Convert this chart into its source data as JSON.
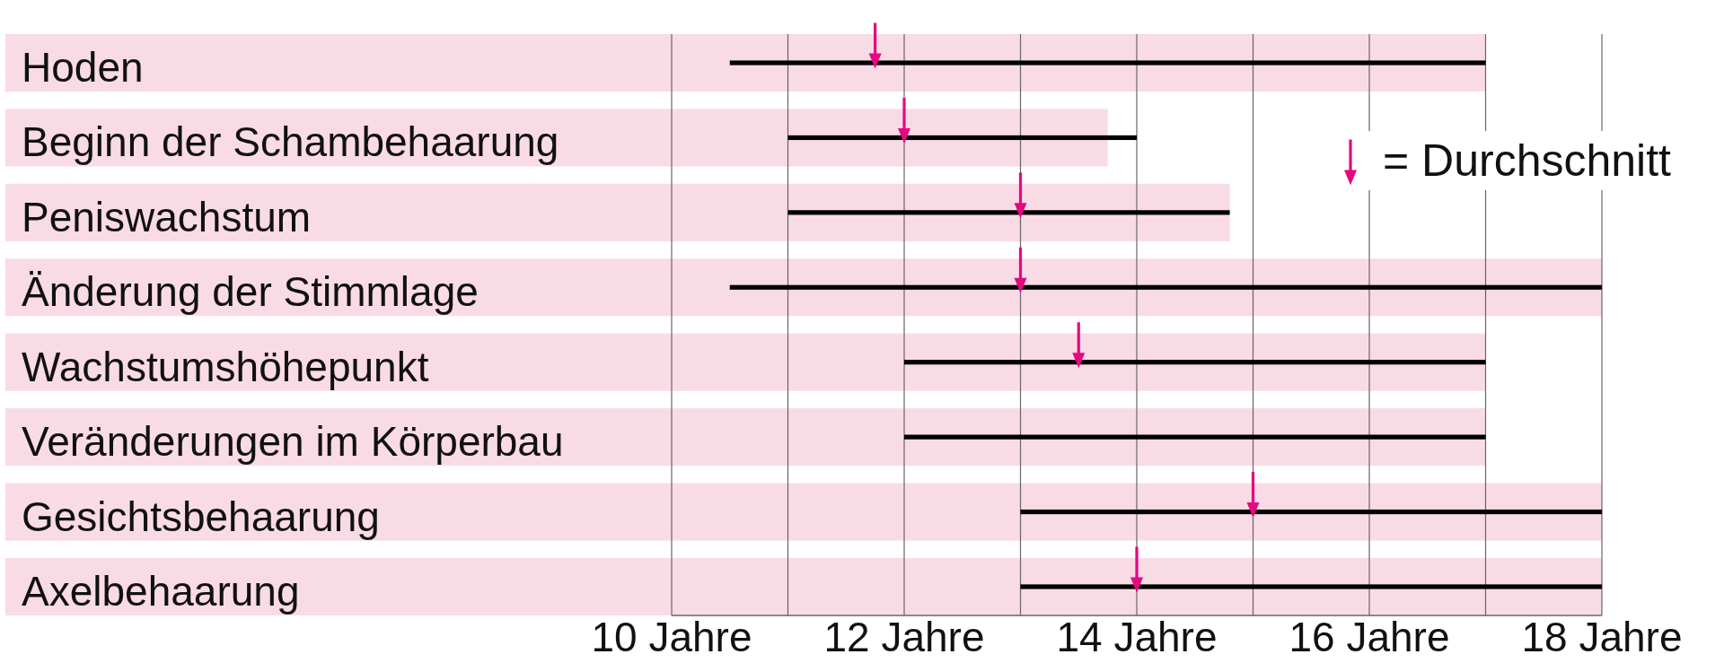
{
  "chart_data": {
    "type": "bar",
    "orientation": "horizontal",
    "categories": [
      "Hoden",
      "Beginn der Schambehaarung",
      "Peniswachstum",
      "Änderung der Stimmlage",
      "Wachstumshöhepunkt",
      "Veränderungen im Körperbau",
      "Gesichtsbehaarung",
      "Axelbehaarung"
    ],
    "series": [
      {
        "type": "bar",
        "color": "#000000",
        "base": [
          10.5,
          11,
          11,
          10.5,
          12,
          12,
          13,
          13
        ],
        "values": [
          6.5,
          3,
          3.8,
          7.5,
          5,
          5,
          5,
          5
        ]
      },
      {
        "color": "#f9dbe6",
        "values": [
          17,
          13.75,
          14.8,
          18,
          17,
          17,
          18,
          18
        ]
      },
      {
        "type": "scatter",
        "name": "= Durchschnitt",
        "color": "#e5097f",
        "values": [
          11.75,
          12,
          13,
          13,
          13.5,
          null,
          15,
          14
        ]
      }
    ],
    "xlim": [
      10,
      18
    ],
    "xticks": [
      {
        "value": 10,
        "label": "10 Jahre"
      },
      {
        "value": 11,
        "label": null
      },
      {
        "value": 12,
        "label": "12 Jahre"
      },
      {
        "value": 13,
        "label": null
      },
      {
        "value": 14,
        "label": "14 Jahre"
      },
      {
        "value": 15,
        "label": null
      },
      {
        "value": 16,
        "label": "16 Jahre"
      },
      {
        "value": 17,
        "label": null
      },
      {
        "value": 18,
        "label": "18 Jahre"
      }
    ],
    "grid": "x",
    "legend": "top right"
  }
}
